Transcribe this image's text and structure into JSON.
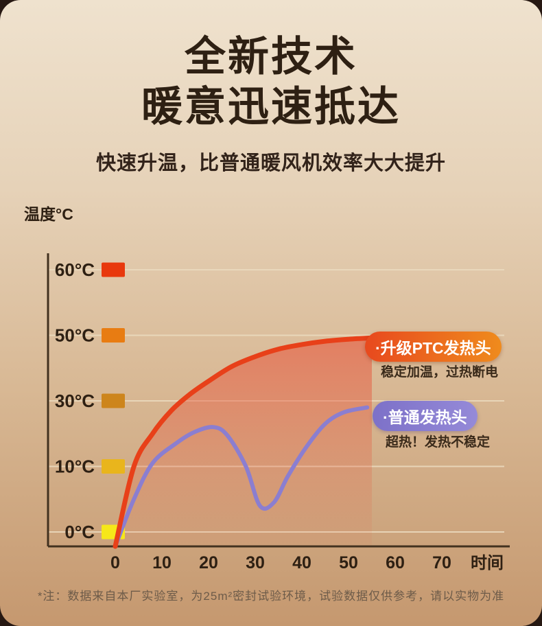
{
  "header": {
    "title_line1": "全新技术",
    "title_line2": "暖意迅速抵达",
    "subtitle": "快速升温，比普通暖风机效率大大提升"
  },
  "chart_data": {
    "type": "line",
    "title": "",
    "y_axis_title": "温度°C",
    "x_axis_title": "时间",
    "x_ticks": [
      "0",
      "10",
      "20",
      "30",
      "40",
      "50",
      "60",
      "70"
    ],
    "x_range": [
      0,
      75
    ],
    "grid": true,
    "y_ticks": [
      {
        "label": "60°C",
        "value": 60,
        "swatch_color": "#e8380d"
      },
      {
        "label": "50°C",
        "value": 50,
        "swatch_color": "#e87c12"
      },
      {
        "label": "30°C",
        "value": 30,
        "swatch_color": "#cd851c"
      },
      {
        "label": "10°C",
        "value": 10,
        "swatch_color": "#e9b51c"
      },
      {
        "label": "0°C",
        "value": 0,
        "swatch_color": "#f6e719"
      }
    ],
    "series": [
      {
        "name": "升级PTC发热头",
        "color": "#e84019",
        "area_fill": true,
        "points": [
          [
            0,
            0
          ],
          [
            4,
            10
          ],
          [
            8,
            20
          ],
          [
            12,
            27
          ],
          [
            16,
            32
          ],
          [
            20,
            36
          ],
          [
            25,
            40.5
          ],
          [
            30,
            43.5
          ],
          [
            35,
            45.8
          ],
          [
            40,
            47.2
          ],
          [
            45,
            48.2
          ],
          [
            50,
            48.8
          ],
          [
            55,
            49.2
          ]
        ]
      },
      {
        "name": "普通发热头",
        "color": "#8b7ed0",
        "area_fill": false,
        "points": [
          [
            0,
            0
          ],
          [
            4,
            5
          ],
          [
            8,
            11
          ],
          [
            13,
            17
          ],
          [
            17,
            20.5
          ],
          [
            21,
            22
          ],
          [
            24,
            19.5
          ],
          [
            28,
            10
          ],
          [
            31,
            4
          ],
          [
            34,
            4.5
          ],
          [
            37,
            8.5
          ],
          [
            41,
            16
          ],
          [
            45,
            23
          ],
          [
            49,
            26.5
          ],
          [
            54,
            28
          ]
        ]
      }
    ],
    "annotations": [
      {
        "series": "升级PTC发热头",
        "badge": "·升级PTC发热头",
        "caption": "稳定加温，过热断电"
      },
      {
        "series": "普通发热头",
        "badge": "·普通发热头",
        "caption": "超热！发热不稳定"
      }
    ],
    "legend_position": "inline-badges"
  },
  "footer": {
    "note": "*注：数据来自本厂实验室，为25m²密封试验环境，试验数据仅供参考，请以实物为准"
  },
  "colors": {
    "background_top": "#efe2ce",
    "background_bottom": "#c5986f",
    "text_dark": "#2e2013",
    "axis": "#42311f",
    "gridline": "#ead9be",
    "ptc_curve": "#e84019",
    "normal_curve": "#8b7ed0"
  }
}
